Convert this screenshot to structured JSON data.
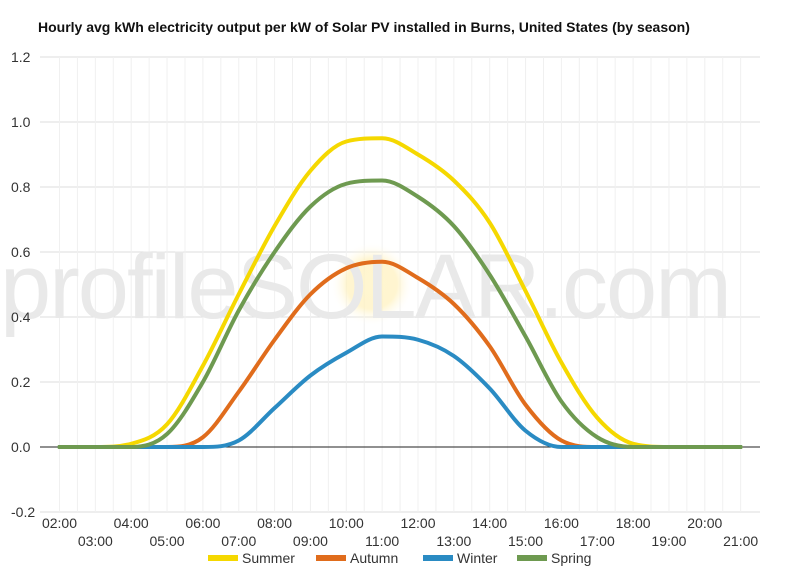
{
  "chart_data": {
    "type": "line",
    "title": "Hourly avg kWh electricity output per kW of Solar PV installed in Burns, United States (by season)",
    "xlabel": "",
    "ylabel": "",
    "ylim": [
      -0.2,
      1.2
    ],
    "yticks": [
      "-0.2",
      "0.0",
      "0.2",
      "0.4",
      "0.6",
      "0.8",
      "1.0",
      "1.2"
    ],
    "x_hours": [
      2,
      3,
      4,
      5,
      6,
      7,
      8,
      9,
      10,
      11,
      12,
      13,
      14,
      15,
      16,
      17,
      18,
      19,
      20,
      21
    ],
    "x": [
      "02:00",
      "03:00",
      "04:00",
      "05:00",
      "06:00",
      "07:00",
      "08:00",
      "09:00",
      "10:00",
      "11:00",
      "12:00",
      "13:00",
      "14:00",
      "15:00",
      "16:00",
      "17:00",
      "18:00",
      "19:00",
      "20:00",
      "21:00"
    ],
    "series": [
      {
        "name": "Summer",
        "color": "#f5d800",
        "values": [
          0,
          0,
          0.01,
          0.07,
          0.25,
          0.47,
          0.68,
          0.85,
          0.94,
          0.95,
          0.9,
          0.82,
          0.69,
          0.48,
          0.26,
          0.09,
          0.01,
          0,
          0,
          0
        ]
      },
      {
        "name": "Autumn",
        "color": "#e06c1c",
        "values": [
          0,
          0,
          0,
          0,
          0.03,
          0.17,
          0.33,
          0.47,
          0.55,
          0.57,
          0.52,
          0.44,
          0.31,
          0.13,
          0.02,
          0,
          0,
          0,
          0,
          0
        ]
      },
      {
        "name": "Winter",
        "color": "#2a8bc3",
        "values": [
          0,
          0,
          0,
          0,
          0,
          0.02,
          0.12,
          0.22,
          0.29,
          0.34,
          0.33,
          0.28,
          0.18,
          0.05,
          0,
          0,
          0,
          0,
          0,
          0
        ]
      },
      {
        "name": "Spring",
        "color": "#6e9a50",
        "values": [
          0,
          0,
          0,
          0.04,
          0.2,
          0.42,
          0.6,
          0.74,
          0.81,
          0.82,
          0.77,
          0.68,
          0.53,
          0.34,
          0.14,
          0.03,
          0,
          0,
          0,
          0
        ]
      }
    ],
    "grid": true,
    "legend": "bottom"
  },
  "watermark": {
    "text": "profileSOLAR.com"
  }
}
